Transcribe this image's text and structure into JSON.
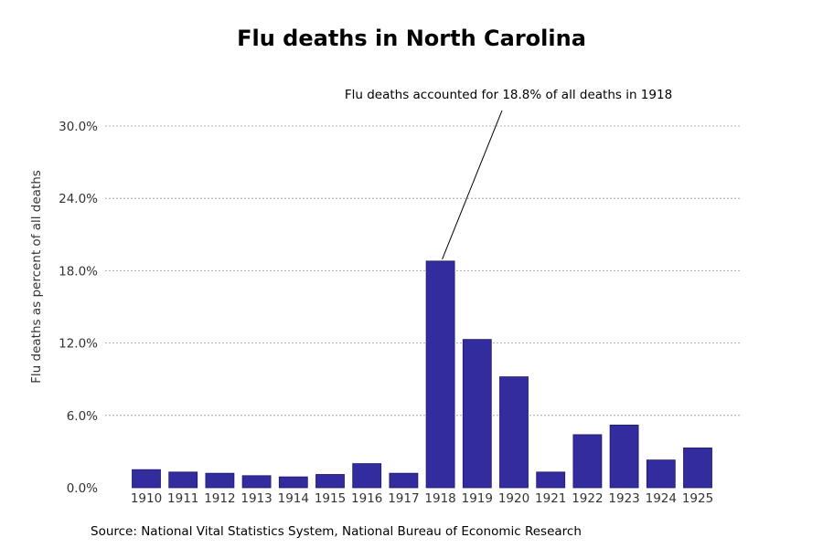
{
  "chart_data": {
    "type": "bar",
    "title": "Flu deaths in North Carolina",
    "xlabel": "",
    "ylabel": "Flu deaths as percent of all deaths",
    "categories": [
      "1910",
      "1911",
      "1912",
      "1913",
      "1914",
      "1915",
      "1916",
      "1917",
      "1918",
      "1919",
      "1920",
      "1921",
      "1922",
      "1923",
      "1924",
      "1925"
    ],
    "values": [
      1.5,
      1.3,
      1.2,
      1.0,
      0.9,
      1.1,
      2.0,
      1.2,
      18.8,
      12.3,
      9.2,
      1.3,
      4.4,
      5.2,
      2.3,
      3.3
    ],
    "ylim": [
      0,
      30
    ],
    "yticks": [
      0,
      6,
      12,
      18,
      24,
      30
    ],
    "ytick_labels": [
      "0.0%",
      "6.0%",
      "12.0%",
      "18.0%",
      "24.0%",
      "30.0%"
    ],
    "grid": "horizontal dashed",
    "bar_color": "#332c9e",
    "bar_edge_color": "#1e1a66",
    "annotation": {
      "text": "Flu deaths accounted for 18.8% of all deaths in 1918",
      "target_category": "1918",
      "target_value": 18.8
    }
  },
  "source": "Source: National Vital Statistics System, National Bureau of Economic Research"
}
